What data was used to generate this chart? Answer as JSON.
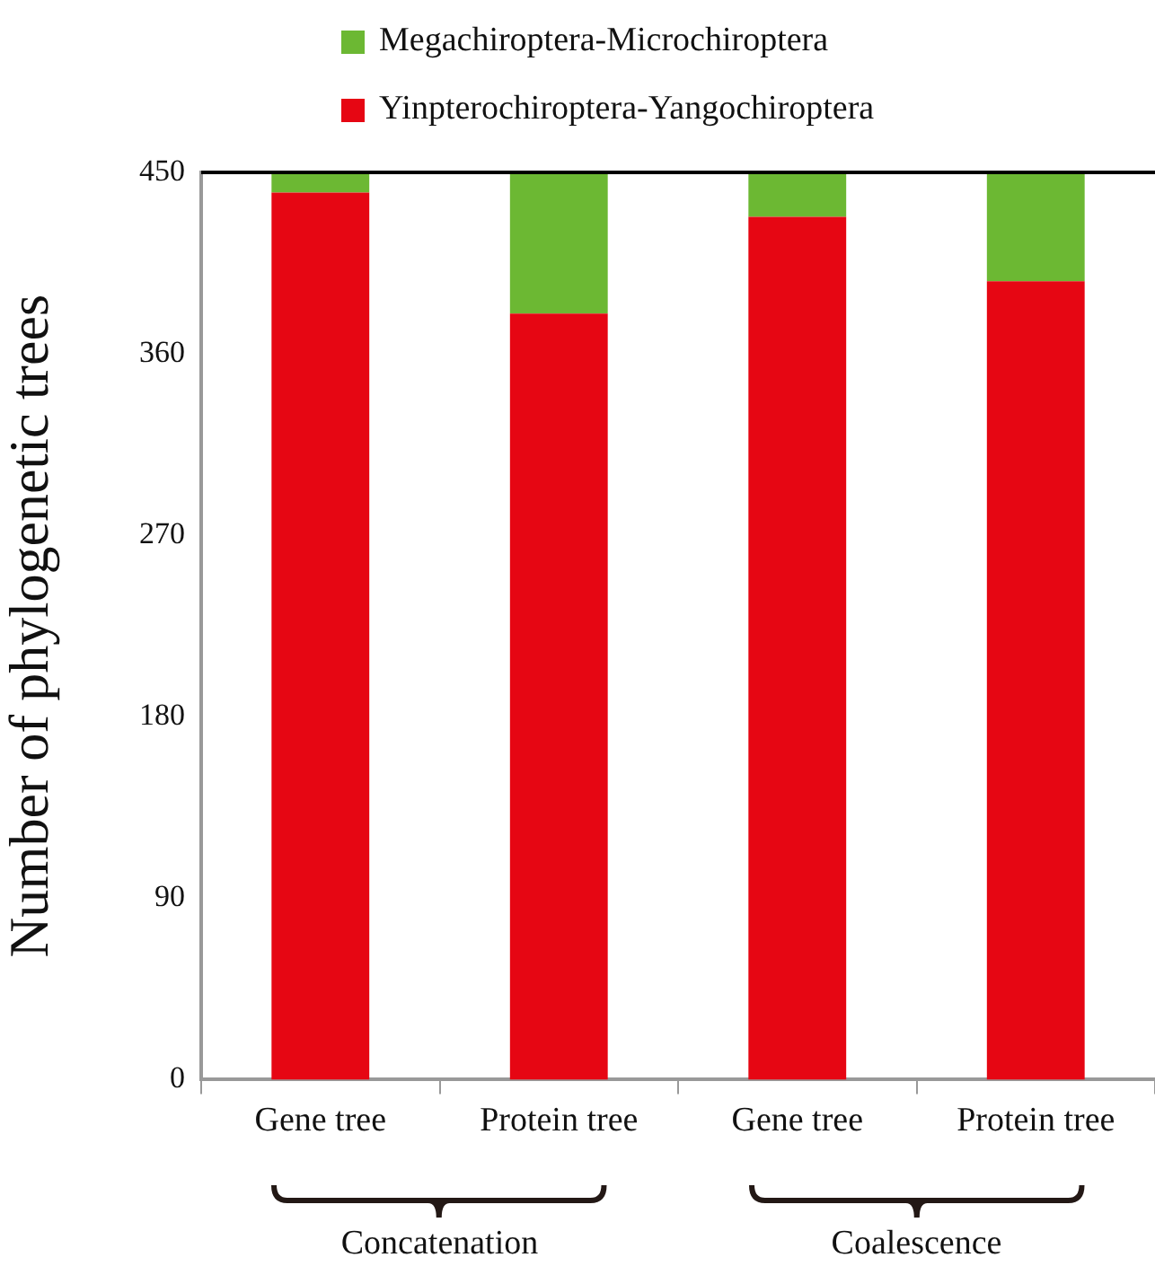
{
  "chart_data": {
    "type": "bar",
    "stacked": true,
    "ylabel": "Number of phylogenetic trees",
    "categories": [
      "Gene tree",
      "Protein tree",
      "Gene tree",
      "Protein tree"
    ],
    "series": [
      {
        "name": "Yinpterochiroptera-Yangochiroptera",
        "color": "#e60613",
        "values": [
          440,
          380,
          428,
          396
        ]
      },
      {
        "name": "Megachiroptera-Microchiroptera",
        "color": "#6cb833",
        "values": [
          10,
          70,
          22,
          54
        ]
      }
    ],
    "ylim": [
      0,
      450
    ],
    "yticks": [
      0,
      90,
      180,
      270,
      360,
      450
    ],
    "grid": false,
    "legend": "top",
    "annotations": [
      "Concatenation",
      "Coalescence"
    ]
  }
}
